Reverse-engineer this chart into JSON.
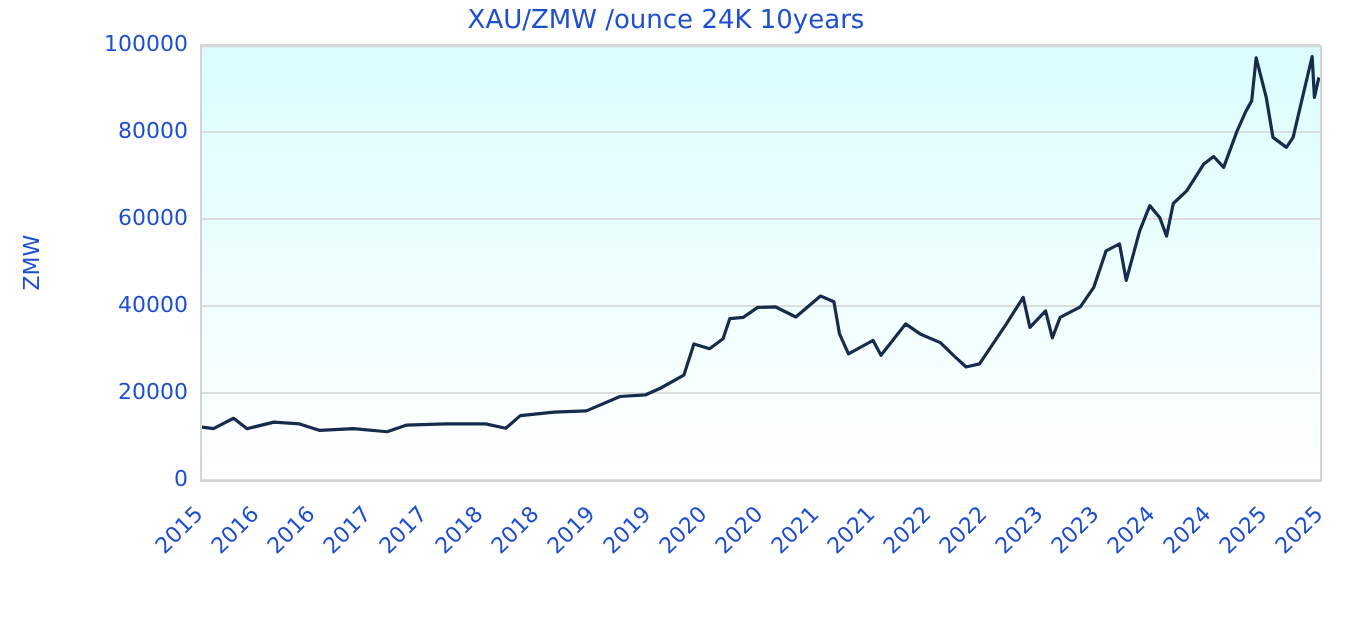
{
  "chart_data": {
    "type": "line",
    "title": "XAU/ZMW /ounce 24K 10years",
    "ylabel": "ZMW",
    "series": [
      {
        "color": "#172b4d",
        "x": [
          2015.5,
          2015.62,
          2015.8,
          2015.92,
          2016.16,
          2016.39,
          2016.57,
          2016.87,
          2017.17,
          2017.34,
          2017.7,
          2018.05,
          2018.23,
          2018.36,
          2018.66,
          2018.95,
          2019.25,
          2019.48,
          2019.61,
          2019.82,
          2019.91,
          2020.05,
          2020.17,
          2020.23,
          2020.35,
          2020.48,
          2020.64,
          2020.82,
          2021.04,
          2021.16,
          2021.21,
          2021.29,
          2021.51,
          2021.58,
          2021.8,
          2021.93,
          2022.11,
          2022.23,
          2022.34,
          2022.46,
          2022.7,
          2022.85,
          2022.91,
          2023.05,
          2023.11,
          2023.18,
          2023.36,
          2023.48,
          2023.59,
          2023.71,
          2023.77,
          2023.89,
          2023.98,
          2024.07,
          2024.13,
          2024.19,
          2024.31,
          2024.46,
          2024.55,
          2024.64,
          2024.76,
          2024.84,
          2024.89,
          2024.93,
          2025.02,
          2025.08,
          2025.2,
          2025.26,
          2025.35,
          2025.43,
          2025.45,
          2025.49
        ],
        "values": [
          12200,
          11800,
          14200,
          11800,
          13300,
          12900,
          11400,
          11800,
          11100,
          12600,
          12900,
          12900,
          11900,
          14800,
          15600,
          15900,
          19200,
          19600,
          21100,
          24100,
          31300,
          30200,
          32500,
          37100,
          37400,
          39700,
          39800,
          37500,
          42300,
          41000,
          33600,
          29000,
          32100,
          28700,
          35900,
          33600,
          31600,
          28600,
          26000,
          26700,
          35900,
          42000,
          35100,
          38900,
          32700,
          37400,
          39800,
          44300,
          52700,
          54300,
          45900,
          57300,
          63100,
          60300,
          56100,
          63600,
          66500,
          72600,
          74400,
          71900,
          80300,
          84900,
          87200,
          97100,
          88000,
          78800,
          76500,
          78800,
          88700,
          97400,
          88000,
          92600
        ]
      }
    ],
    "xlim": [
      2015.5,
      2025.5
    ],
    "xticks": [
      {
        "value": 2015.5,
        "label": "2015"
      },
      {
        "value": 2016,
        "label": "2016"
      },
      {
        "value": 2016.5,
        "label": "2016"
      },
      {
        "value": 2017,
        "label": "2017"
      },
      {
        "value": 2017.5,
        "label": "2017"
      },
      {
        "value": 2018,
        "label": "2018"
      },
      {
        "value": 2018.5,
        "label": "2018"
      },
      {
        "value": 2019,
        "label": "2019"
      },
      {
        "value": 2019.5,
        "label": "2019"
      },
      {
        "value": 2020,
        "label": "2020"
      },
      {
        "value": 2020.5,
        "label": "2020"
      },
      {
        "value": 2021,
        "label": "2021"
      },
      {
        "value": 2021.5,
        "label": "2021"
      },
      {
        "value": 2022,
        "label": "2022"
      },
      {
        "value": 2022.5,
        "label": "2022"
      },
      {
        "value": 2023,
        "label": "2023"
      },
      {
        "value": 2023.5,
        "label": "2023"
      },
      {
        "value": 2024,
        "label": "2024"
      },
      {
        "value": 2024.5,
        "label": "2024"
      },
      {
        "value": 2025,
        "label": "2025"
      },
      {
        "value": 2025.5,
        "label": "2025"
      }
    ],
    "ylim": [
      0,
      100000
    ],
    "yticks": [
      0,
      20000,
      40000,
      60000,
      80000,
      100000
    ],
    "grid": "y",
    "legend": false,
    "marker": "none",
    "line_style": "solid"
  }
}
